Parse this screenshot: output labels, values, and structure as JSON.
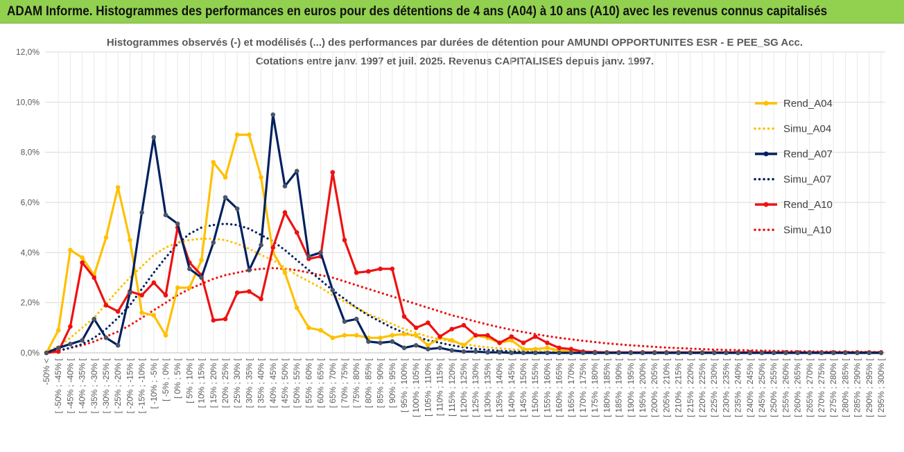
{
  "banner": {
    "title": "ADAM Informe. Histogrammes des performances en euros pour des détentions de 4 ans (A04) à 10 ans (A10) avec les revenus connus capitalisés"
  },
  "chart_data": {
    "type": "line",
    "title": "Histogrammes observés (-) et modélisés (...) des performances par durées de détention pour AMUNDI OPPORTUNITES ESR - E PEE_SG Acc.",
    "subtitle": "Cotations entre janv. 1997 et juil. 2025. Revenus CAPITALISES depuis janv. 1997.",
    "xlabel": "",
    "ylabel": "",
    "ylim": [
      0,
      12
    ],
    "y_ticks": [
      "0,0%",
      "2,0%",
      "4,0%",
      "6,0%",
      "8,0%",
      "10,0%",
      "12,0%"
    ],
    "grid": true,
    "legend_position": "top-right",
    "categories": [
      "-50% <",
      "[ -50% ; -45% [",
      "[ -45% ; -40% [",
      "[ -40% ; -35% [",
      "[ -35% ; -30% [",
      "[ -30% ; -25% [",
      "[ -25% ; -20% [",
      "[ -20% ; -15% [",
      "[ -15% ; -10% [",
      "[ -10% ; -5% [",
      "[ -5% ; 0% [",
      "[ 0% ; 5% [",
      "[ 5% ; 10% [",
      "[ 10% ; 15% [",
      "[ 15% ; 20% [",
      "[ 20% ; 25% [",
      "[ 25% ; 30% [",
      "[ 30% ; 35% [",
      "[ 35% ; 40% [",
      "[ 40% ; 45% [",
      "[ 45% ; 50% [",
      "[ 50% ; 55% [",
      "[ 55% ; 60% [",
      "[ 60% ; 65% [",
      "[ 65% ; 70% [",
      "[ 70% ; 75% [",
      "[ 75% ; 80% [",
      "[ 80% ; 85% [",
      "[ 85% ; 90% [",
      "[ 90% ; 95% [",
      "[ 95% ; 100% [",
      "[ 100% ; 105% [",
      "[ 105% ; 110% [",
      "[ 110% ; 115% [",
      "[ 115% ; 120% [",
      "[ 120% ; 125% [",
      "[ 125% ; 130% [",
      "[ 130% ; 135% [",
      "[ 135% ; 140% [",
      "[ 140% ; 145% [",
      "[ 145% ; 150% [",
      "[ 150% ; 155% [",
      "[ 155% ; 160% [",
      "[ 160% ; 165% [",
      "[ 165% ; 170% [",
      "[ 170% ; 175% [",
      "[ 175% ; 180% [",
      "[ 180% ; 185% [",
      "[ 185% ; 190% [",
      "[ 190% ; 195% [",
      "[ 195% ; 200% [",
      "[ 200% ; 205% [",
      "[ 205% ; 210% [",
      "[ 210% ; 215% [",
      "[ 215% ; 220% [",
      "[ 220% ; 225% [",
      "[ 225% ; 230% [",
      "[ 230% ; 235% [",
      "[ 235% ; 240% [",
      "[ 240% ; 245% [",
      "[ 245% ; 250% [",
      "[ 250% ; 255% [",
      "[ 255% ; 260% [",
      "[ 260% ; 265% [",
      "[ 265% ; 270% [",
      "[ 270% ; 275% [",
      "[ 275% ; 280% [",
      "[ 280% ; 285% [",
      "[ 285% ; 290% [",
      "[ 290% ; 295% [",
      "[ 295% ; 300% ["
    ],
    "series": [
      {
        "name": "Rend_A04",
        "style": "solid",
        "color": "#ffc000",
        "values": [
          0.0,
          0.9,
          4.1,
          3.8,
          3.1,
          4.6,
          6.6,
          4.5,
          1.6,
          1.5,
          0.7,
          2.6,
          2.6,
          3.7,
          7.6,
          7.0,
          8.7,
          8.7,
          7.0,
          4.0,
          3.2,
          1.8,
          1.0,
          0.9,
          0.6,
          0.7,
          0.7,
          0.6,
          0.6,
          0.7,
          0.75,
          0.7,
          0.3,
          0.6,
          0.5,
          0.3,
          0.7,
          0.6,
          0.4,
          0.5,
          0.15,
          0.15,
          0.2,
          0.1,
          0.05,
          0.02,
          0.0,
          0.0,
          0.0,
          0.0,
          0.0,
          0.0,
          0.0,
          0.0,
          0.0,
          0.0,
          0.0,
          0.0,
          0.0,
          0.0,
          0.0,
          0.0,
          0.0,
          0.0,
          0.0,
          0.0,
          0.0,
          0.0,
          0.0,
          0.0,
          0.0
        ]
      },
      {
        "name": "Simu_A04",
        "style": "dotted",
        "color": "#ffc000",
        "values": [
          0.05,
          0.25,
          0.6,
          1.0,
          1.4,
          1.95,
          2.5,
          3.0,
          3.45,
          3.9,
          4.2,
          4.4,
          4.5,
          4.55,
          4.55,
          4.5,
          4.35,
          4.15,
          3.9,
          3.7,
          3.4,
          3.1,
          2.85,
          2.6,
          2.3,
          2.05,
          1.8,
          1.55,
          1.35,
          1.15,
          0.95,
          0.8,
          0.65,
          0.55,
          0.45,
          0.35,
          0.28,
          0.22,
          0.18,
          0.14,
          0.11,
          0.08,
          0.06,
          0.05,
          0.04,
          0.03,
          0.02,
          0.01,
          0.01,
          0.0,
          0.0,
          0.0,
          0.0,
          0.0,
          0.0,
          0.0,
          0.0,
          0.0,
          0.0,
          0.0,
          0.0,
          0.0,
          0.0,
          0.0,
          0.0,
          0.0,
          0.0,
          0.0,
          0.0,
          0.0,
          0.0
        ]
      },
      {
        "name": "Rend_A07",
        "style": "solid",
        "color": "#002060",
        "values": [
          0.0,
          0.2,
          0.35,
          0.5,
          1.35,
          0.6,
          0.3,
          2.4,
          5.6,
          8.6,
          5.5,
          5.15,
          3.35,
          3.0,
          4.4,
          6.2,
          5.75,
          3.3,
          4.3,
          9.5,
          6.65,
          7.25,
          3.85,
          4.0,
          2.5,
          1.25,
          1.35,
          0.45,
          0.4,
          0.45,
          0.2,
          0.3,
          0.15,
          0.2,
          0.1,
          0.05,
          0.05,
          0.02,
          0.02,
          0.0,
          0.0,
          0.0,
          0.0,
          0.0,
          0.0,
          0.0,
          0.0,
          0.0,
          0.0,
          0.0,
          0.0,
          0.0,
          0.0,
          0.0,
          0.0,
          0.0,
          0.0,
          0.0,
          0.0,
          0.0,
          0.0,
          0.0,
          0.0,
          0.0,
          0.0,
          0.0,
          0.0,
          0.0,
          0.0,
          0.0,
          0.0
        ]
      },
      {
        "name": "Simu_A07",
        "style": "dotted",
        "color": "#002060",
        "values": [
          0.02,
          0.08,
          0.2,
          0.35,
          0.6,
          0.95,
          1.4,
          1.9,
          2.55,
          3.2,
          3.8,
          4.35,
          4.75,
          5.0,
          5.1,
          5.15,
          5.1,
          4.95,
          4.7,
          4.45,
          4.1,
          3.7,
          3.3,
          2.9,
          2.5,
          2.15,
          1.8,
          1.5,
          1.25,
          1.0,
          0.8,
          0.65,
          0.5,
          0.4,
          0.3,
          0.22,
          0.16,
          0.12,
          0.08,
          0.06,
          0.04,
          0.03,
          0.02,
          0.01,
          0.01,
          0.0,
          0.0,
          0.0,
          0.0,
          0.0,
          0.0,
          0.0,
          0.0,
          0.0,
          0.0,
          0.0,
          0.0,
          0.0,
          0.0,
          0.0,
          0.0,
          0.0,
          0.0,
          0.0,
          0.0,
          0.0,
          0.0,
          0.0,
          0.0,
          0.0,
          0.0
        ]
      },
      {
        "name": "Rend_A10",
        "style": "solid",
        "color": "#ee1111",
        "values": [
          0.0,
          0.05,
          1.05,
          3.6,
          3.0,
          1.9,
          1.65,
          2.45,
          2.3,
          2.8,
          2.3,
          5.0,
          3.6,
          3.1,
          1.3,
          1.35,
          2.4,
          2.45,
          2.15,
          4.2,
          5.6,
          4.8,
          3.75,
          3.85,
          7.2,
          4.5,
          3.2,
          3.25,
          3.35,
          3.35,
          1.45,
          1.0,
          1.2,
          0.65,
          0.95,
          1.1,
          0.7,
          0.7,
          0.4,
          0.65,
          0.4,
          0.65,
          0.4,
          0.2,
          0.15,
          0.05,
          0.03,
          0.02,
          0.02,
          0.02,
          0.02,
          0.02,
          0.02,
          0.02,
          0.02,
          0.02,
          0.02,
          0.02,
          0.02,
          0.02,
          0.02,
          0.02,
          0.02,
          0.02,
          0.02,
          0.02,
          0.02,
          0.02,
          0.02,
          0.02,
          0.02
        ]
      },
      {
        "name": "Simu_A10",
        "style": "dotted",
        "color": "#ee1111",
        "values": [
          0.0,
          0.1,
          0.2,
          0.3,
          0.45,
          0.65,
          0.85,
          1.1,
          1.4,
          1.7,
          2.0,
          2.3,
          2.55,
          2.75,
          2.95,
          3.1,
          3.2,
          3.3,
          3.35,
          3.38,
          3.35,
          3.3,
          3.2,
          3.1,
          3.0,
          2.85,
          2.7,
          2.55,
          2.4,
          2.25,
          2.1,
          1.95,
          1.8,
          1.65,
          1.5,
          1.38,
          1.25,
          1.13,
          1.02,
          0.92,
          0.83,
          0.75,
          0.67,
          0.6,
          0.54,
          0.48,
          0.43,
          0.38,
          0.34,
          0.3,
          0.27,
          0.24,
          0.21,
          0.19,
          0.17,
          0.15,
          0.13,
          0.12,
          0.11,
          0.1,
          0.09,
          0.08,
          0.07,
          0.06,
          0.06,
          0.05,
          0.05,
          0.04,
          0.04,
          0.04,
          0.03
        ]
      }
    ]
  }
}
